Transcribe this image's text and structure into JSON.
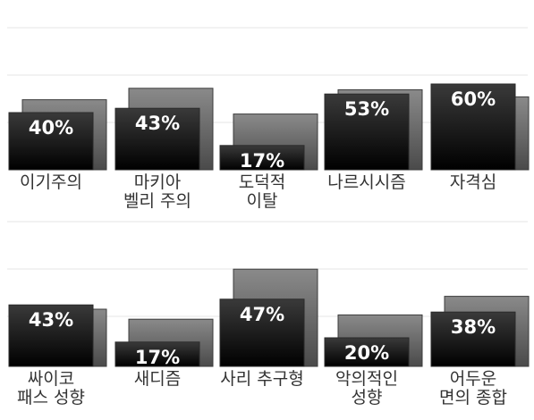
{
  "chart_data": [
    {
      "type": "bar",
      "title": "",
      "xlabel": "",
      "ylabel": "",
      "ylim": [
        0,
        100
      ],
      "grid": true,
      "categories": [
        [
          "이기주의"
        ],
        [
          "마키아",
          "벨리 주의"
        ],
        [
          "도덕적",
          "이탈"
        ],
        [
          "나르시시즘"
        ],
        [
          "자격심"
        ]
      ],
      "series": [
        {
          "values": [
            40,
            43,
            17,
            53,
            60
          ],
          "labels": [
            "40%",
            "43%",
            "17%",
            "53%",
            "60%"
          ]
        },
        {
          "values": [
            49,
            57,
            39,
            56,
            51
          ]
        }
      ]
    },
    {
      "type": "bar",
      "title": "",
      "xlabel": "",
      "ylabel": "",
      "ylim": [
        0,
        100
      ],
      "grid": true,
      "categories": [
        [
          "싸이코",
          "패스 성향"
        ],
        [
          "새디즘"
        ],
        [
          "사리 추구형"
        ],
        [
          "악의적인",
          "성향"
        ],
        [
          "어두운",
          "면의 종합"
        ]
      ],
      "series": [
        {
          "values": [
            43,
            17,
            47,
            20,
            38
          ],
          "labels": [
            "43%",
            "17%",
            "47%",
            "20%",
            "38%"
          ]
        },
        {
          "values": [
            40,
            33,
            68,
            36,
            49
          ]
        }
      ]
    }
  ]
}
